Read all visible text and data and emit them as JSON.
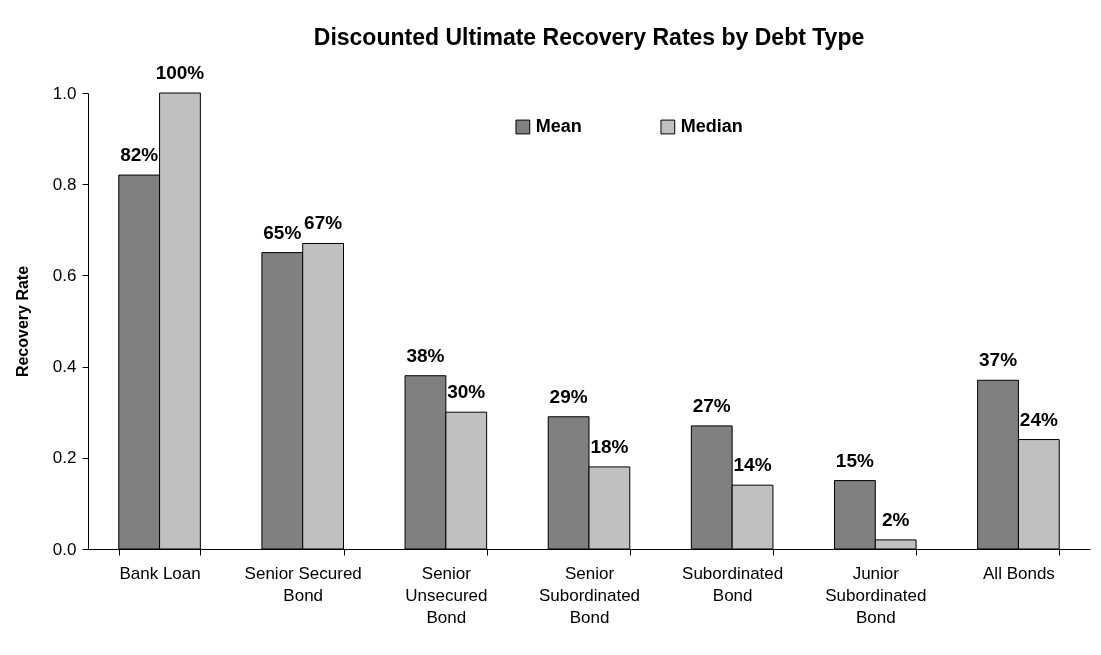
{
  "chart_data": {
    "type": "bar",
    "title": "Discounted Ultimate Recovery Rates by Debt Type",
    "ylabel": "Recovery Rate",
    "categories": [
      "Bank Loan",
      "Senior Secured\nBond",
      "Senior\nUnsecured\nBond",
      "Senior\nSubordinated\nBond",
      "Subordinated\nBond",
      "Junior\nSubordinated\nBond",
      "All Bonds"
    ],
    "series": [
      {
        "name": "Mean",
        "color": "#808080",
        "values": [
          0.82,
          0.65,
          0.38,
          0.29,
          0.27,
          0.15,
          0.37
        ],
        "value_labels": [
          "82%",
          "65%",
          "38%",
          "29%",
          "27%",
          "15%",
          "37%"
        ]
      },
      {
        "name": "Median",
        "color": "#c0c0c0",
        "values": [
          1.0,
          0.67,
          0.3,
          0.18,
          0.14,
          0.02,
          0.24
        ],
        "value_labels": [
          "100%",
          "67%",
          "30%",
          "18%",
          "14%",
          "2%",
          "24%"
        ]
      }
    ],
    "ylim": [
      0,
      1.0
    ],
    "yticks": [
      {
        "value": 0,
        "label": "0.0"
      },
      {
        "value": 0.2,
        "label": "0.2"
      },
      {
        "value": 0.4,
        "label": "0.4"
      },
      {
        "value": 0.6,
        "label": "0.6"
      },
      {
        "value": 0.8,
        "label": "0.8"
      },
      {
        "value": 1.0,
        "label": "1.0"
      }
    ],
    "legend": "top"
  }
}
